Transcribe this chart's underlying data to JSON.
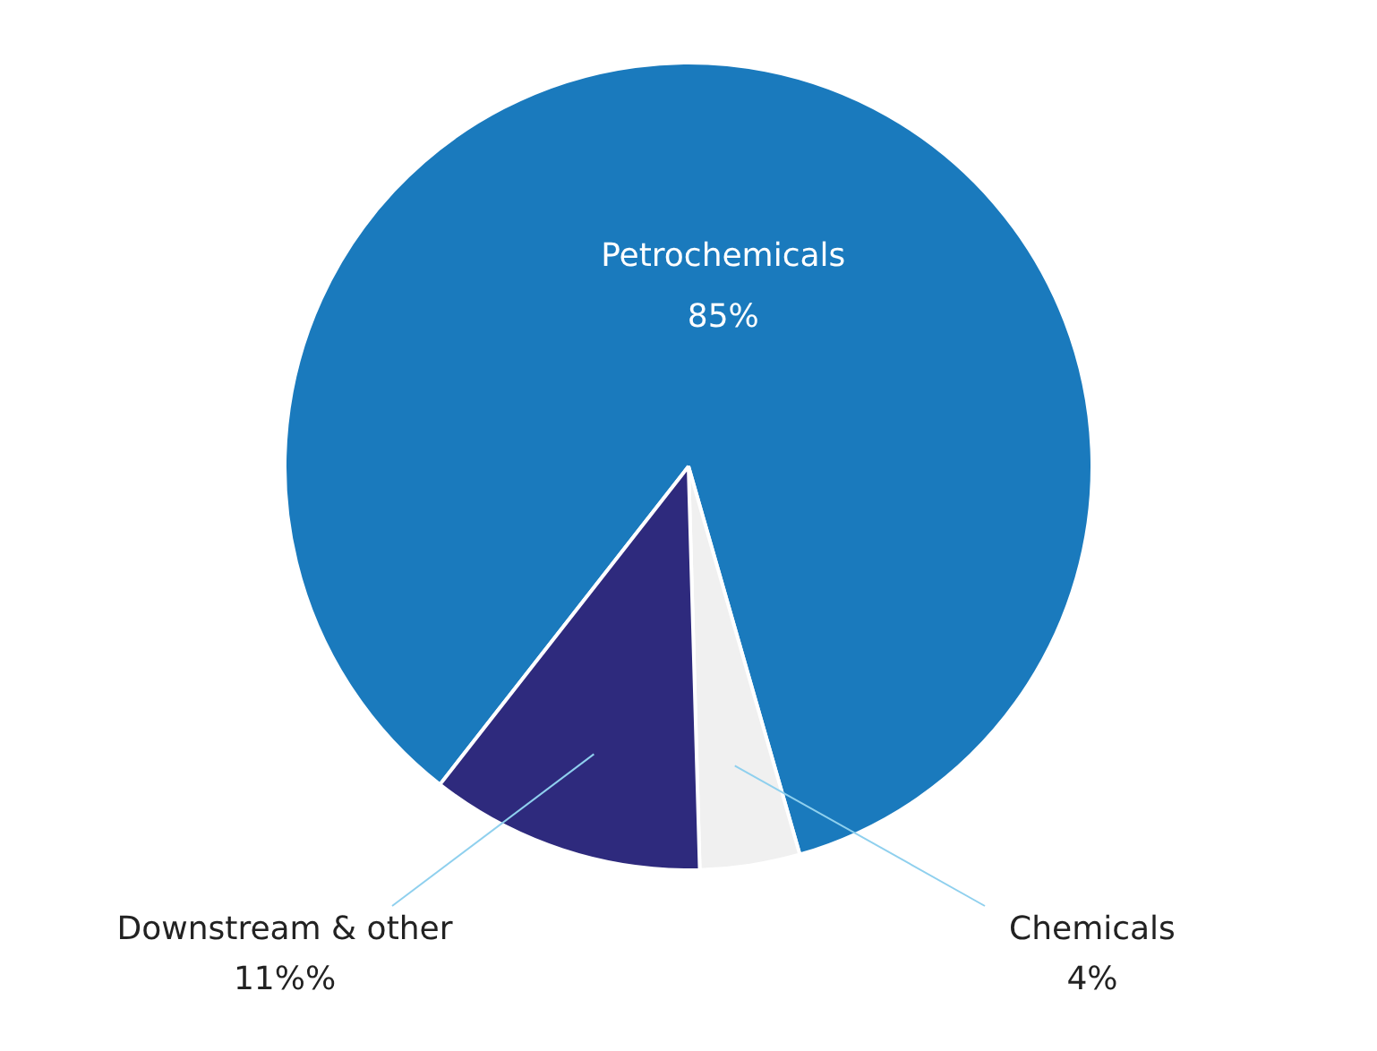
{
  "chart_data": {
    "type": "pie",
    "categories": [
      "Petrochemicals",
      "Chemicals",
      "Downstream & other"
    ],
    "values": [
      85,
      4,
      11
    ],
    "colors": [
      "#1a7abd",
      "#f0f0f0",
      "#2e2a7d"
    ],
    "value_labels": [
      "85%",
      "4%",
      "11%%"
    ],
    "legend": false
  }
}
